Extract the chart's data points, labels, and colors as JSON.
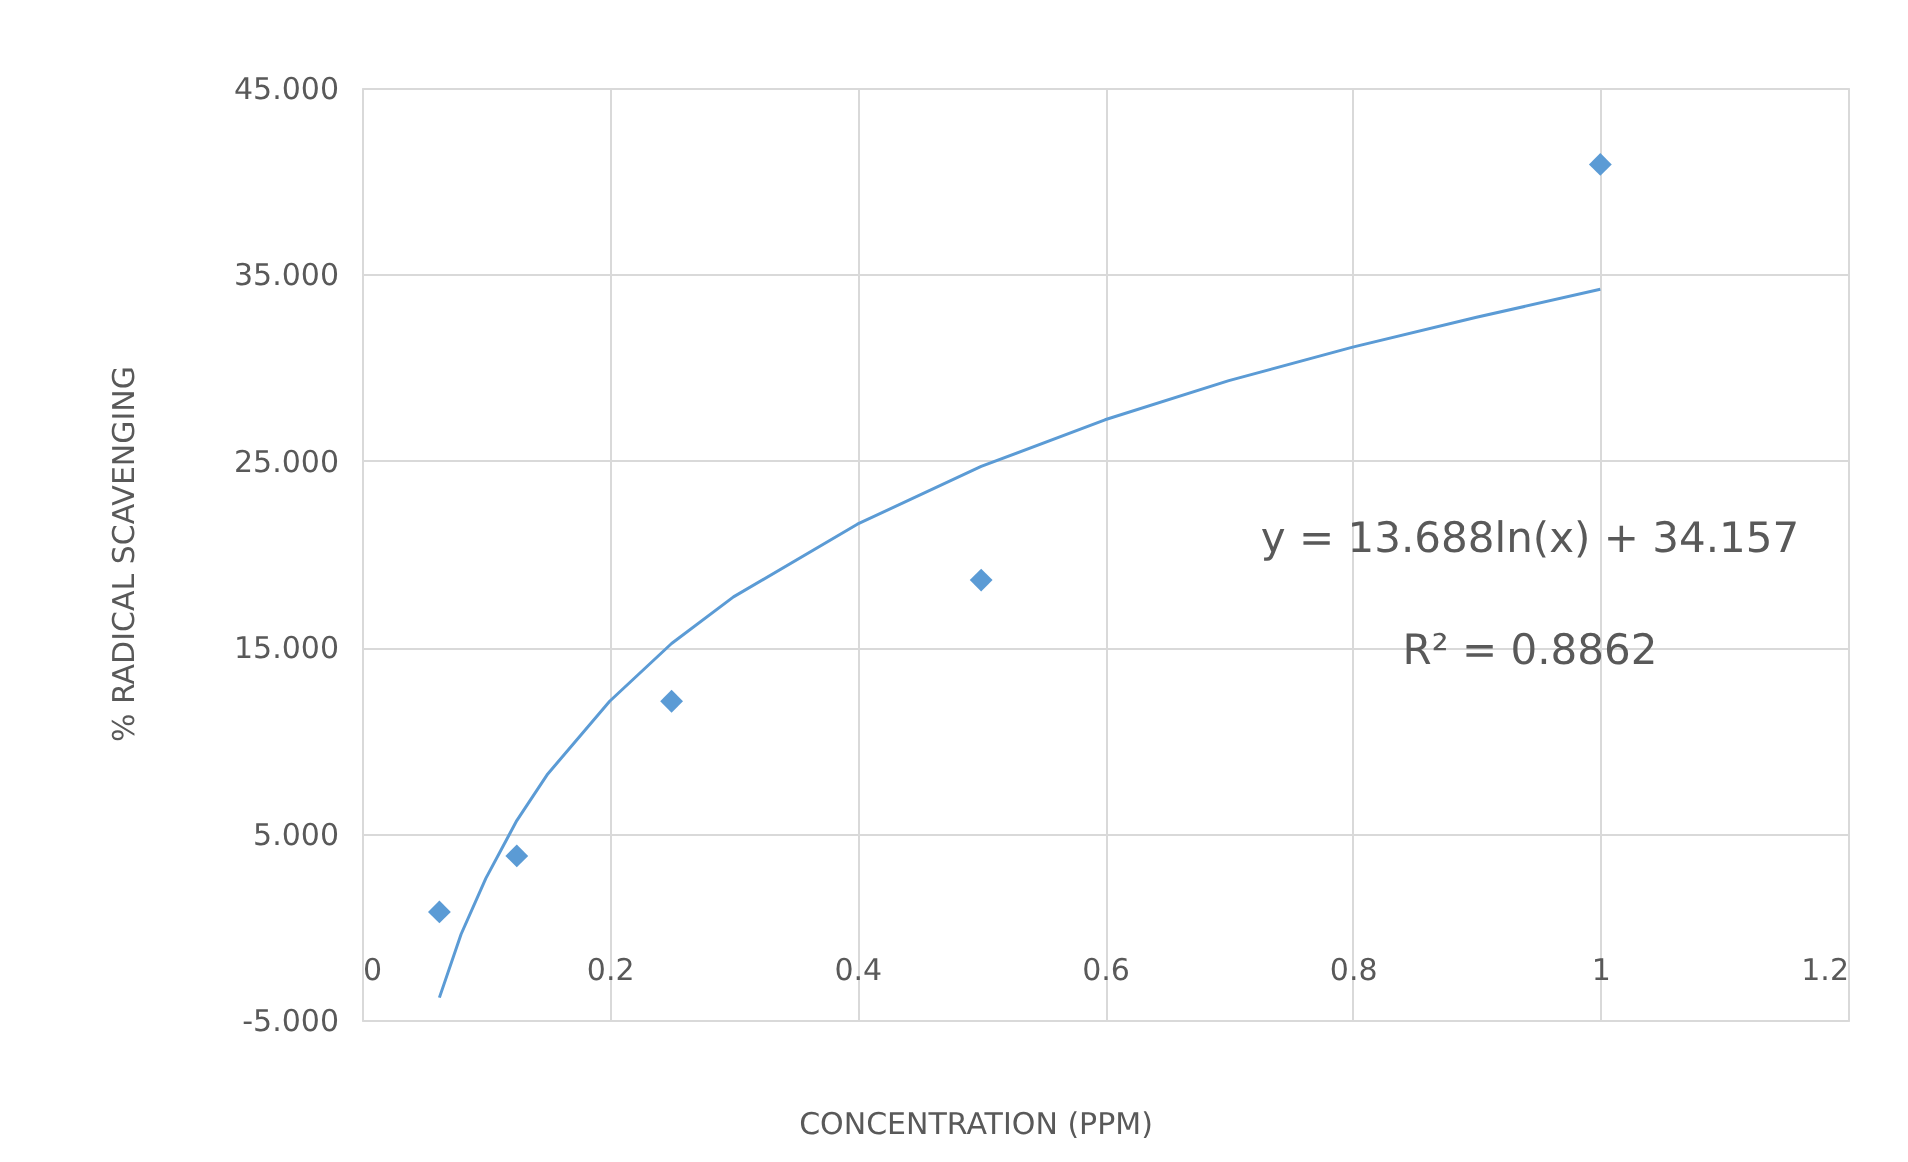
{
  "chart_data": {
    "type": "scatter",
    "xlabel": "CONCENTRATION (PPM)",
    "ylabel": "% RADICAL SCAVENGING",
    "series": [
      {
        "color": "#5b9bd5",
        "marker": "diamond",
        "x": [
          0.0625,
          0.125,
          0.25,
          0.5,
          1
        ],
        "values": [
          0.8,
          3.8,
          12.1,
          18.6,
          40.9
        ]
      },
      {
        "type": "line",
        "color": "#5b9bd5",
        "marker": "none",
        "line_style": "solid",
        "x": [
          0.0625,
          0.08,
          0.1,
          0.125,
          0.15,
          0.2,
          0.25,
          0.3,
          0.4,
          0.5,
          0.6,
          0.7,
          0.8,
          0.9,
          1
        ],
        "values": [
          -3.8,
          -0.4,
          2.6,
          5.7,
          8.2,
          12.1,
          15.2,
          17.7,
          21.6,
          24.7,
          27.2,
          29.3,
          31.1,
          32.7,
          34.2
        ]
      }
    ],
    "xlim": [
      0,
      1.2
    ],
    "xticks": [
      0,
      0.2,
      0.4,
      0.6,
      0.8,
      1,
      1.2
    ],
    "ylim": [
      -5,
      45
    ],
    "yticks": [
      {
        "value": -5,
        "label": "-5.000"
      },
      {
        "value": 5,
        "label": "5.000"
      },
      {
        "value": 15,
        "label": "15.000"
      },
      {
        "value": 25,
        "label": "25.000"
      },
      {
        "value": 35,
        "label": "35.000"
      },
      {
        "value": 45,
        "label": "45.000"
      }
    ],
    "grid": true,
    "annotations": [
      "y = 13.688ln(x) + 34.157",
      "R² = 0.8862"
    ]
  }
}
